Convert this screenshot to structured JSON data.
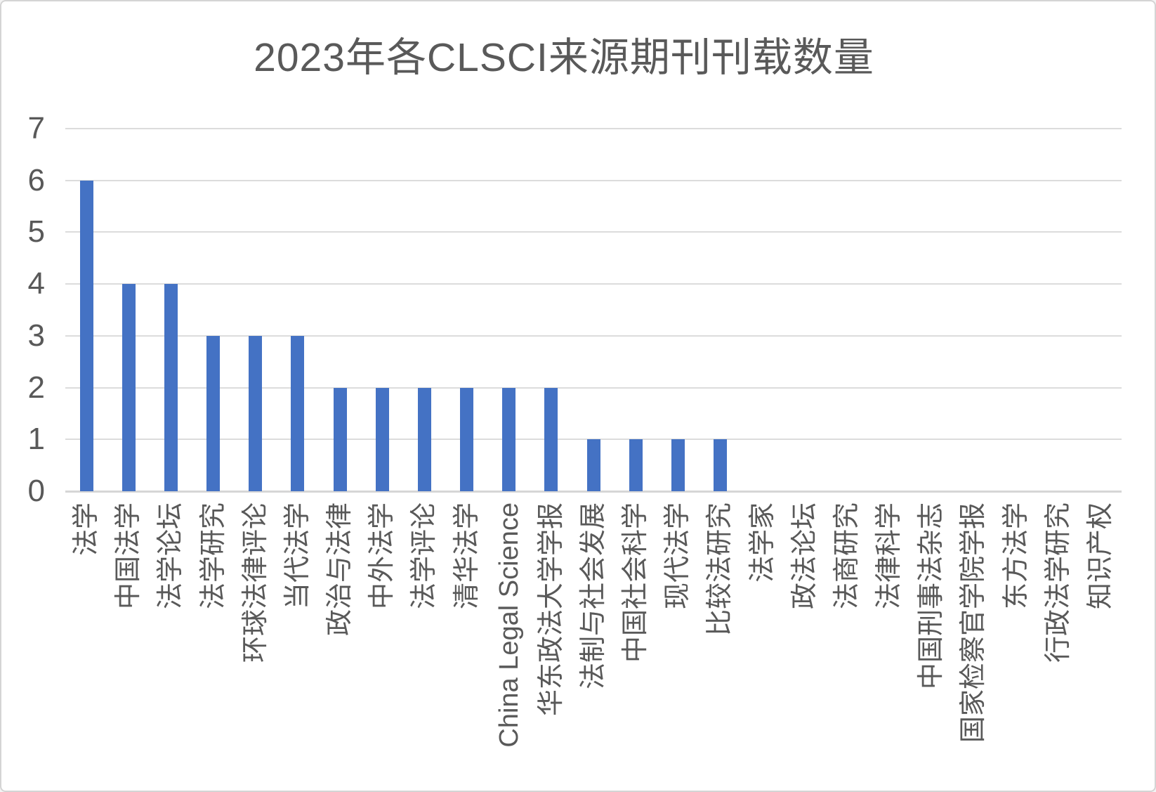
{
  "title": "2023年各CLSCI来源期刊刊载数量",
  "colors": {
    "bar": "#4472C4",
    "gridline": "#DCDCDC",
    "axis_line": "#D6D6D6",
    "text": "#595959",
    "border": "#D4D4D4",
    "background": "#FFFFFF"
  },
  "chart_data": {
    "type": "bar",
    "title": "2023年各CLSCI来源期刊刊载数量",
    "categories": [
      "法学",
      "中国法学",
      "法学论坛",
      "法学研究",
      "环球法律评论",
      "当代法学",
      "政治与法律",
      "中外法学",
      "法学评论",
      "清华法学",
      "China Legal Science",
      "华东政法大学学报",
      "法制与社会发展",
      "中国社会科学",
      "现代法学",
      "比较法研究",
      "法学家",
      "政法论坛",
      "法商研究",
      "法律科学",
      "中国刑事法杂志",
      "国家检察官学院学报",
      "东方法学",
      "行政法学研究",
      "知识产权"
    ],
    "values": [
      6,
      4,
      4,
      3,
      3,
      3,
      2,
      2,
      2,
      2,
      2,
      2,
      1,
      1,
      1,
      1,
      0,
      0,
      0,
      0,
      0,
      0,
      0,
      0,
      0
    ],
    "xlabel": "",
    "ylabel": "",
    "ylim": [
      0,
      7
    ],
    "yticks": [
      0,
      1,
      2,
      3,
      4,
      5,
      6,
      7
    ],
    "grid": true,
    "legend": false,
    "x_tick_rotation": -90
  }
}
